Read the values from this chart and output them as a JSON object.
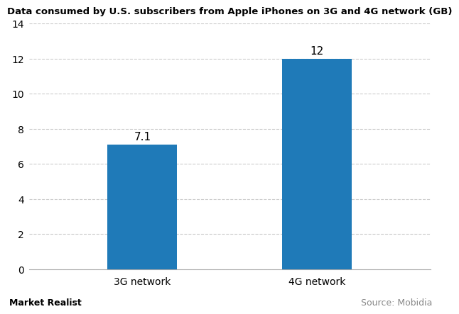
{
  "title": "Data consumed by U.S. subscribers from Apple iPhones on 3G and 4G network (GB)",
  "categories": [
    "3G network",
    "4G network"
  ],
  "values": [
    7.1,
    12
  ],
  "bar_color": "#1F7AB8",
  "ylim": [
    0,
    14
  ],
  "yticks": [
    0,
    2,
    4,
    6,
    8,
    10,
    12,
    14
  ],
  "bar_width": 0.4,
  "bar_labels": [
    "7.1",
    "12"
  ],
  "background_color": "#ffffff",
  "grid_color": "#cccccc",
  "footer_left": "Market Realist",
  "footer_right": "Source: Mobidia",
  "title_fontsize": 9.5,
  "label_fontsize": 10,
  "tick_fontsize": 10,
  "annotation_fontsize": 11,
  "x_positions": [
    1,
    2
  ],
  "xlim": [
    0.35,
    2.65
  ]
}
